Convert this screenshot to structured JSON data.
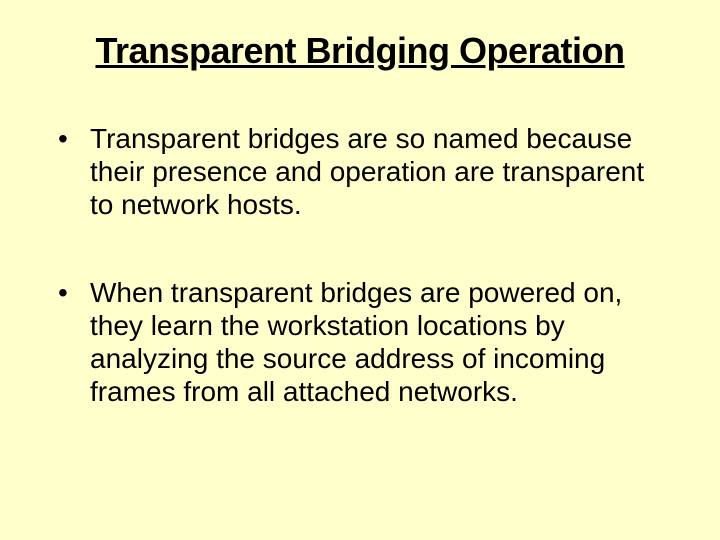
{
  "slide": {
    "title": "Transparent Bridging Operation",
    "bullets": [
      "Transparent bridges are so named because their presence and operation are transparent to network hosts.",
      "When transparent bridges are powered on, they learn the workstation locations by analyzing the source address of incoming frames from all attached networks."
    ],
    "background_color": "#ffffcc",
    "text_color": "#000000",
    "title_fontsize": 36,
    "body_fontsize": 28
  }
}
